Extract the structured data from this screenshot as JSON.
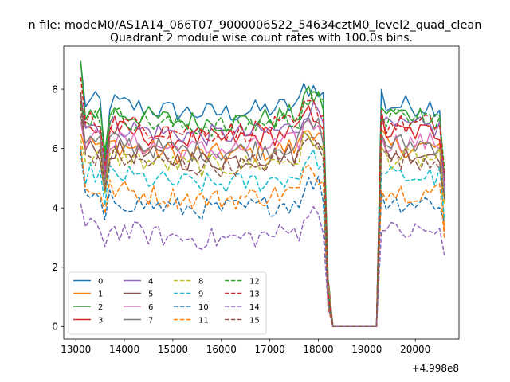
{
  "figure": {
    "suptitle": "n file: modeM0/AS1A14_066T07_9000006522_54634cztM0_level2_quad_clean",
    "title": "Quadrant 2 module wise count rates with 100.0s bins."
  },
  "chart_data": {
    "type": "line",
    "title": "Quadrant 2 module wise count rates with 100.0s bins.",
    "xlabel": "",
    "ylabel": "",
    "x_offset_label": "+4.998e8",
    "xlim": [
      12750,
      20900
    ],
    "ylim": [
      -0.42,
      9.45
    ],
    "xticks": [
      13000,
      14000,
      15000,
      16000,
      17000,
      18000,
      19000,
      20000
    ],
    "yticks": [
      0,
      2,
      4,
      6,
      8
    ],
    "grid": false,
    "legend": {
      "placement": "lower-left",
      "columns": 4
    },
    "x": [
      13100,
      13200,
      13300,
      13400,
      13500,
      13600,
      13700,
      13800,
      13900,
      14000,
      14100,
      14200,
      14300,
      14400,
      14500,
      14600,
      14700,
      14800,
      14900,
      15000,
      15100,
      15200,
      15300,
      15400,
      15500,
      15600,
      15700,
      15800,
      15900,
      16000,
      16100,
      16200,
      16300,
      16400,
      16500,
      16600,
      16700,
      16800,
      16900,
      17000,
      17100,
      17200,
      17300,
      17400,
      17500,
      17600,
      17700,
      17800,
      17900,
      18000,
      18100,
      18200,
      18300,
      18400,
      18500,
      18600,
      18700,
      18800,
      18900,
      19000,
      19100,
      19200,
      19300,
      19400,
      19500,
      19600,
      19700,
      19800,
      19900,
      20000,
      20100,
      20200,
      20300,
      20400,
      20500,
      20600
    ],
    "gap": {
      "start": 18300,
      "end": 19200
    },
    "series": [
      {
        "name": "0",
        "color": "#1f77b4",
        "dash": "solid",
        "base": 7.35,
        "start": 8.9,
        "dip": 5.6,
        "end": 4.6
      },
      {
        "name": "1",
        "color": "#ff7f0e",
        "dash": "solid",
        "base": 5.95,
        "start": 6.5,
        "dip": 4.6,
        "end": 3.2
      },
      {
        "name": "2",
        "color": "#2ca02c",
        "dash": "solid",
        "base": 7.05,
        "start": 8.95,
        "dip": 5.9,
        "end": 5.0
      },
      {
        "name": "3",
        "color": "#d62728",
        "dash": "solid",
        "base": 6.45,
        "start": 7.6,
        "dip": 5.1,
        "end": 4.9
      },
      {
        "name": "4",
        "color": "#9467bd",
        "dash": "solid",
        "base": 6.6,
        "start": 7.8,
        "dip": 5.3,
        "end": 4.7
      },
      {
        "name": "5",
        "color": "#8c564b",
        "dash": "solid",
        "base": 5.75,
        "start": 7.9,
        "dip": 4.5,
        "end": 4.3
      },
      {
        "name": "6",
        "color": "#e377c2",
        "dash": "solid",
        "base": 6.1,
        "start": 6.9,
        "dip": 4.9,
        "end": 4.5
      },
      {
        "name": "7",
        "color": "#7f7f7f",
        "dash": "solid",
        "base": 6.05,
        "start": 7.1,
        "dip": 4.8,
        "end": 4.4
      },
      {
        "name": "8",
        "color": "#bcbd22",
        "dash": "dashed",
        "base": 5.55,
        "start": 6.3,
        "dip": 4.5,
        "end": 4.1
      },
      {
        "name": "9",
        "color": "#17becf",
        "dash": "dashed",
        "base": 4.95,
        "start": 6.0,
        "dip": 4.1,
        "end": 3.6
      },
      {
        "name": "10",
        "color": "#1f77b4",
        "dash": "dashed",
        "base": 4.1,
        "start": 5.9,
        "dip": 3.6,
        "end": 3.5
      },
      {
        "name": "11",
        "color": "#ff7f0e",
        "dash": "dashed",
        "base": 4.45,
        "start": 6.1,
        "dip": 3.8,
        "end": 3.0
      },
      {
        "name": "12",
        "color": "#2ca02c",
        "dash": "dashed",
        "base": 6.9,
        "start": 7.5,
        "dip": 5.7,
        "end": 5.3
      },
      {
        "name": "13",
        "color": "#d62728",
        "dash": "dashed",
        "base": 6.7,
        "start": 8.4,
        "dip": 5.4,
        "end": 5.1
      },
      {
        "name": "14",
        "color": "#9467bd",
        "dash": "dashed",
        "base": 3.1,
        "start": 4.15,
        "dip": 2.7,
        "end": 2.4
      },
      {
        "name": "15",
        "color": "#8c564b",
        "dash": "dashed",
        "base": 5.55,
        "start": 7.4,
        "dip": 4.6,
        "end": 4.4
      }
    ]
  }
}
